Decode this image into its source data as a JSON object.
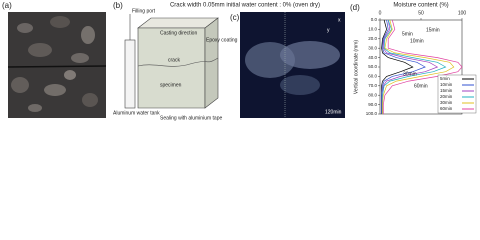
{
  "figure_title": "Crack width 0.05mm initial water content : 0% (oven dry)",
  "panels": {
    "a": {
      "label": "(a)"
    },
    "b": {
      "label": "(b)",
      "filling_port": "Filling port",
      "casting_direction": "Casting direction",
      "epoxy": "Epoxy coating",
      "crack": "crack",
      "specimen": "specimen",
      "tank": "Aluminum water tank",
      "sealing": "Sealing with aluminium tape"
    },
    "c": {
      "label": "(c)",
      "time": "120min",
      "axis_x": "x",
      "axis_y": "y"
    },
    "d": {
      "label": "(d)"
    }
  },
  "chart_data": {
    "type": "line",
    "xlabel": "Moisture content (%)",
    "ylabel": "Vertical coordinate (mm)",
    "x": [
      0,
      10,
      20,
      30,
      35,
      40,
      45,
      50,
      55,
      60,
      65,
      70,
      80,
      90,
      100
    ],
    "series": [
      {
        "name": "5min",
        "color": "#000000",
        "values": [
          5,
          8,
          3,
          2,
          3,
          10,
          30,
          40,
          25,
          8,
          3,
          2,
          2,
          2,
          2
        ]
      },
      {
        "name": "10min",
        "color": "#3050d0",
        "values": [
          8,
          10,
          4,
          3,
          5,
          20,
          45,
          55,
          40,
          15,
          5,
          3,
          2,
          2,
          2
        ]
      },
      {
        "name": "15min",
        "color": "#a040c0",
        "values": [
          10,
          12,
          5,
          4,
          8,
          30,
          60,
          70,
          55,
          25,
          8,
          4,
          3,
          3,
          3
        ]
      },
      {
        "name": "20min",
        "color": "#20b0c0",
        "values": [
          10,
          14,
          6,
          5,
          12,
          40,
          70,
          80,
          65,
          35,
          12,
          5,
          3,
          3,
          3
        ]
      },
      {
        "name": "30min",
        "color": "#e0c020",
        "values": [
          12,
          15,
          8,
          6,
          18,
          55,
          85,
          90,
          80,
          50,
          20,
          8,
          4,
          3,
          3
        ]
      },
      {
        "name": "60min",
        "color": "#e040a0",
        "values": [
          15,
          18,
          10,
          10,
          30,
          70,
          95,
          100,
          95,
          70,
          35,
          15,
          6,
          4,
          4
        ]
      }
    ],
    "annotations": [
      "5min",
      "10min",
      "15min",
      "30min",
      "60min"
    ],
    "xlim": [
      0,
      100
    ],
    "xticks": [
      0,
      50,
      100
    ],
    "ylim": [
      0,
      100
    ],
    "yticks": [
      {
        "value": 0,
        "label": "0.0"
      },
      {
        "value": 10,
        "label": "10.0"
      },
      {
        "value": 20,
        "label": "20.0"
      },
      {
        "value": 30,
        "label": "30.0"
      },
      {
        "value": 40,
        "label": "40.0"
      },
      {
        "value": 50,
        "label": "50.0"
      },
      {
        "value": 60,
        "label": "60.0"
      },
      {
        "value": 70,
        "label": "70.0"
      },
      {
        "value": 80,
        "label": "80.0"
      },
      {
        "value": 90,
        "label": "90.0"
      },
      {
        "value": 100,
        "label": "100.0"
      }
    ],
    "y_inverted": true,
    "legend": "lower right"
  }
}
